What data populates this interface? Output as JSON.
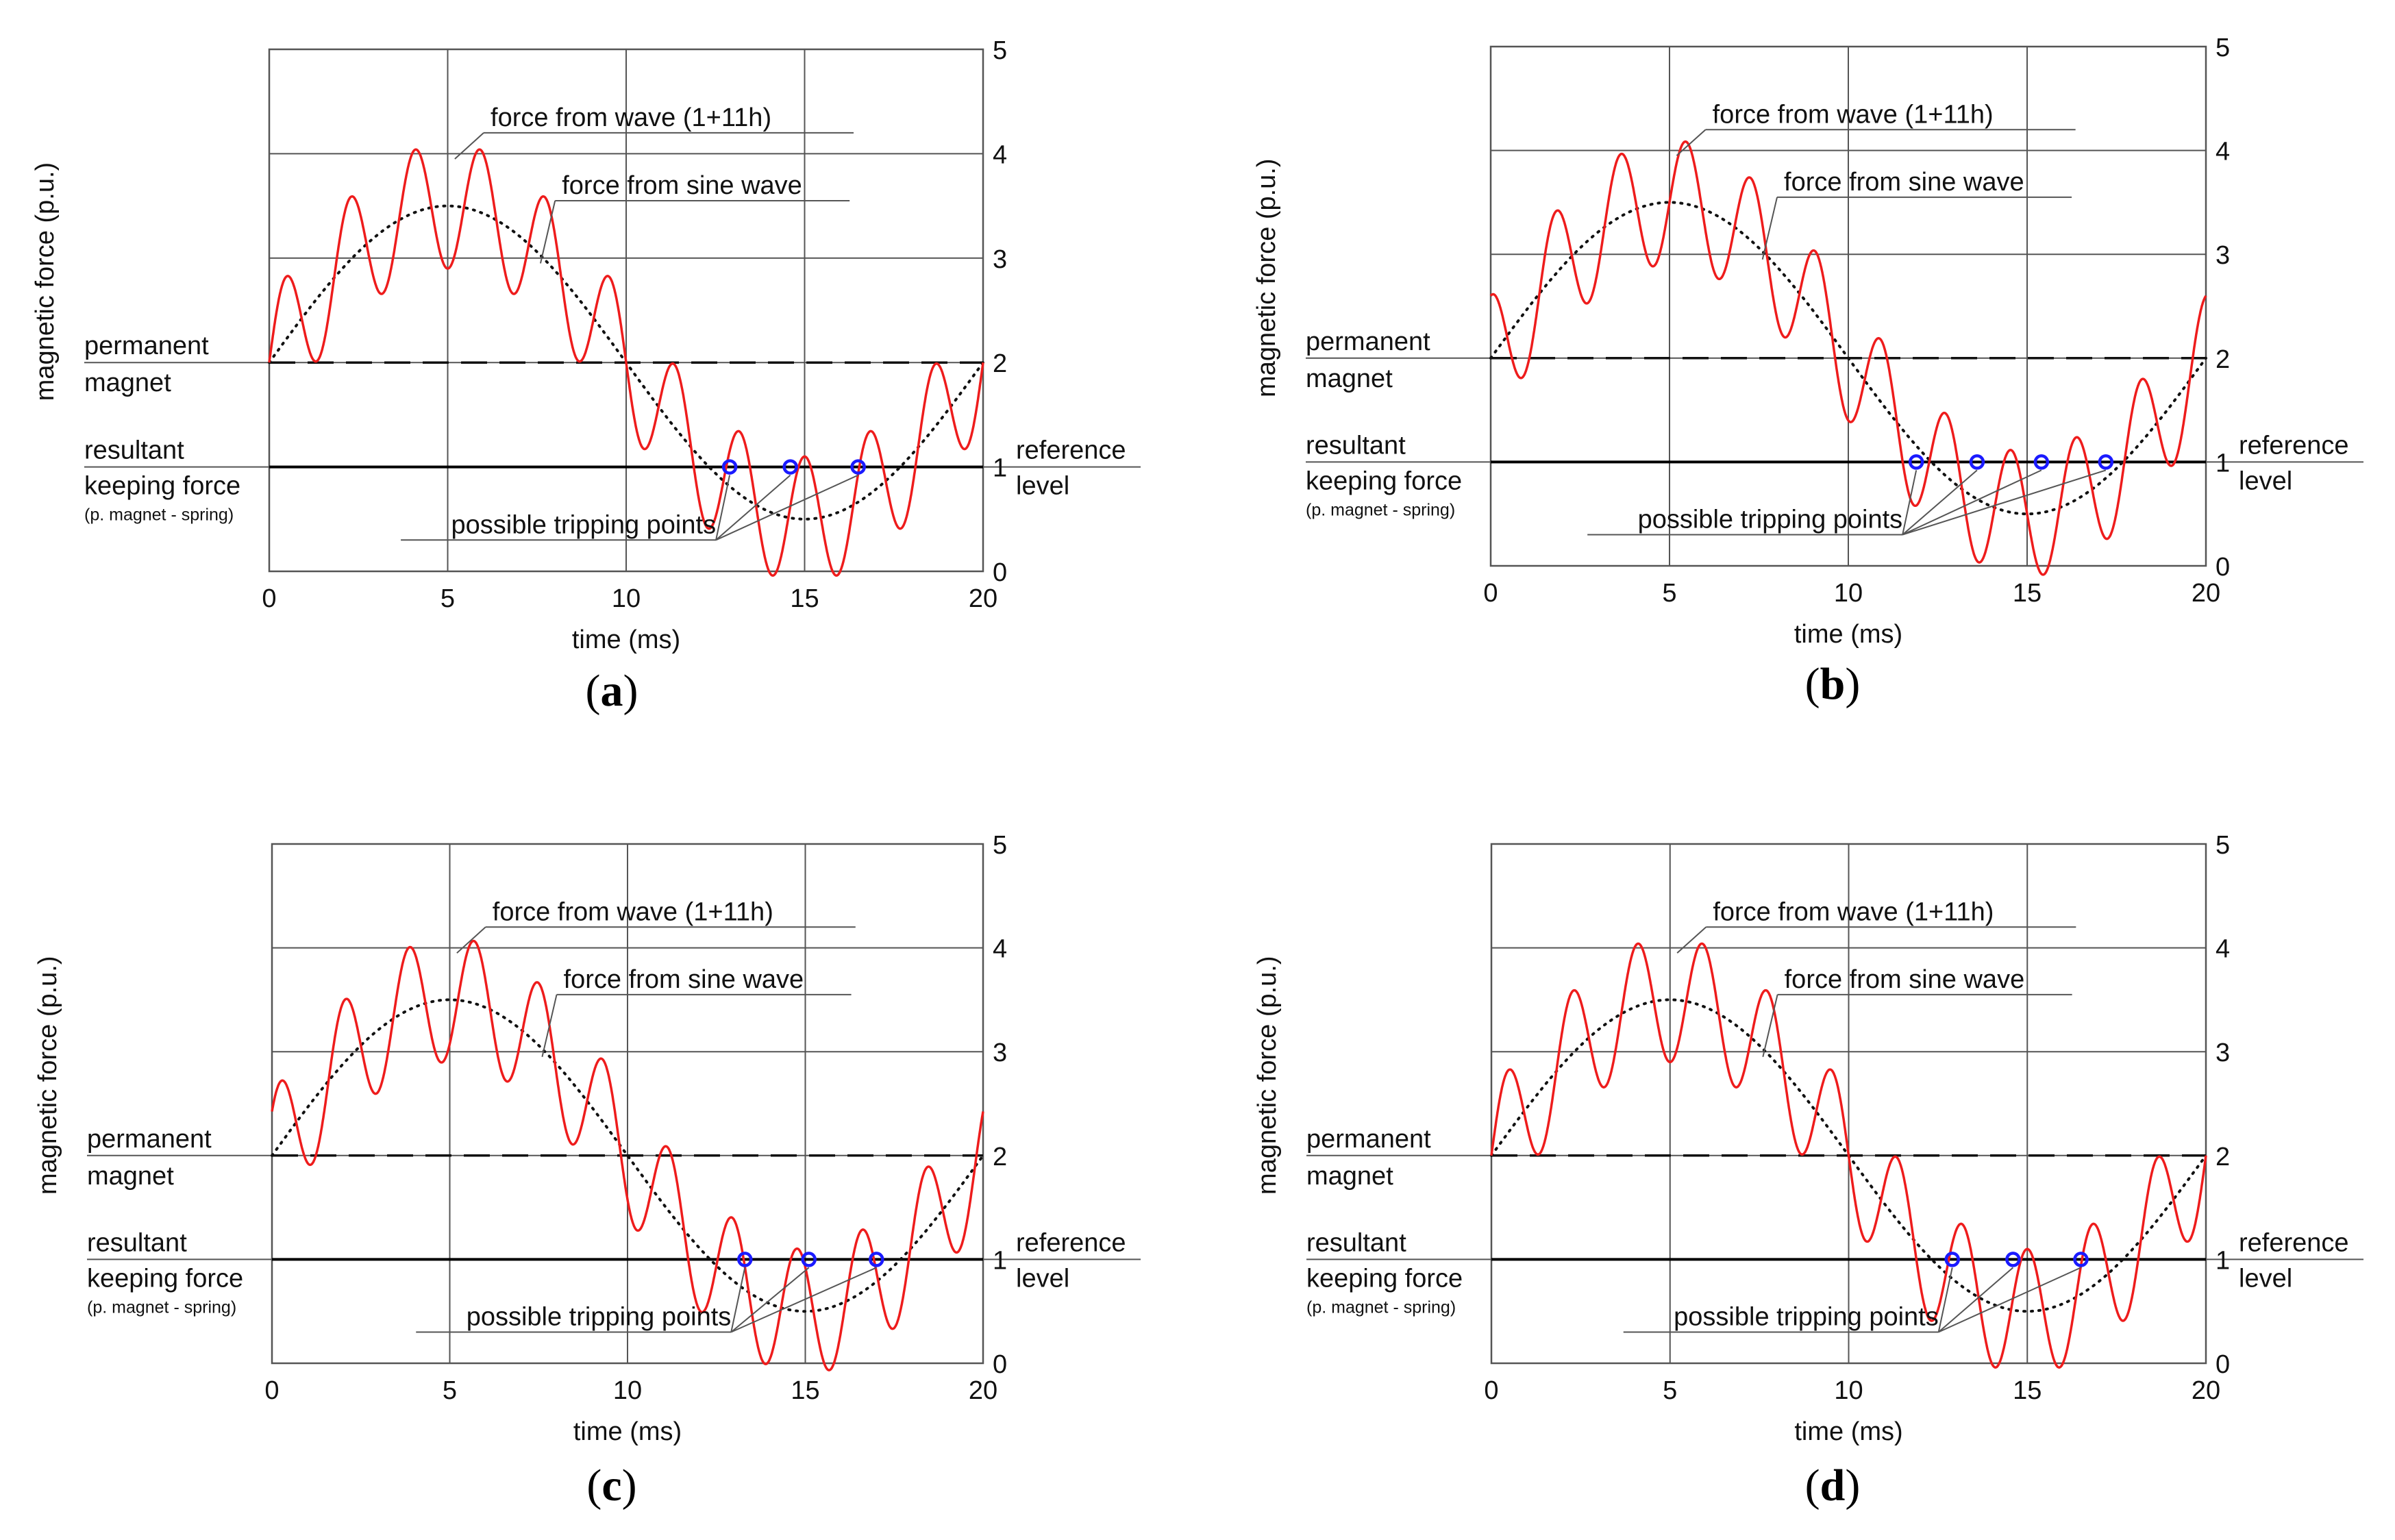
{
  "figure": {
    "common": {
      "ylabel": "magnetic force (p.u.)",
      "xlabel": "time (ms)",
      "xlim": [
        0,
        20
      ],
      "ylim": [
        0,
        5
      ],
      "xticks": [
        "0",
        "5",
        "10",
        "15",
        "20"
      ],
      "yticks": [
        "0",
        "1",
        "2",
        "3",
        "4",
        "5"
      ],
      "label_permanent_magnet": [
        "permanent",
        "magnet"
      ],
      "label_resultant": [
        "resultant",
        "keeping force"
      ],
      "label_resultant_sub": "(p. magnet - spring)",
      "label_reference": [
        "reference",
        "level"
      ],
      "ann_wave": "force from wave (1+11h)",
      "ann_sine": "force from sine wave",
      "ann_tripping": "possible tripping points",
      "colors": {
        "wave": "#ee1c1c",
        "sine": "#111111",
        "trip": "#1a1aff",
        "grid": "#555555"
      }
    }
  },
  "chart_data": [
    {
      "panel": "a",
      "caption": "a",
      "type": "line",
      "series": [
        {
          "name": "force from sine wave",
          "formula": "2 + 1.5*sin(2*pi*t/20)",
          "style": "dotted"
        },
        {
          "name": "force from wave (1+11h)",
          "formula": "2 + 1.5*sin(2*pi*t/20) + 0.6*sin(2*pi*11*t/20 + phase)",
          "phase_deg": 0,
          "style": "solid"
        },
        {
          "name": "permanent magnet",
          "y": 2,
          "style": "dashed"
        },
        {
          "name": "resultant keeping force",
          "y": 1,
          "style": "solid"
        }
      ],
      "tripping_points_ms": [
        12.9,
        14.6,
        16.5
      ]
    },
    {
      "panel": "b",
      "caption": "b",
      "type": "line",
      "series": [
        {
          "name": "force from sine wave",
          "formula": "2 + 1.5*sin(2*pi*t/20)",
          "style": "dotted"
        },
        {
          "name": "force from wave (1+11h)",
          "formula": "2 + 1.5*sin(2*pi*t/20) + 0.6*sin(2*pi*11*t/20 + phase)",
          "phase_deg": 90,
          "style": "solid"
        },
        {
          "name": "permanent magnet",
          "y": 2,
          "style": "dashed"
        },
        {
          "name": "resultant keeping force",
          "y": 1,
          "style": "solid"
        }
      ],
      "tripping_points_ms": [
        11.9,
        13.6,
        15.4,
        17.2
      ]
    },
    {
      "panel": "c",
      "caption": "c",
      "type": "line",
      "series": [
        {
          "name": "force from sine wave",
          "formula": "2 + 1.5*sin(2*pi*t/20)",
          "style": "dotted"
        },
        {
          "name": "force from wave (1+11h)",
          "formula": "2 + 1.5*sin(2*pi*t/20) + 0.6*sin(2*pi*11*t/20 + phase)",
          "phase_deg": 45,
          "style": "solid"
        },
        {
          "name": "permanent magnet",
          "y": 2,
          "style": "dashed"
        },
        {
          "name": "resultant keeping force",
          "y": 1,
          "style": "solid"
        }
      ],
      "tripping_points_ms": [
        13.3,
        15.1,
        17.0
      ]
    },
    {
      "panel": "d",
      "caption": "d",
      "type": "line",
      "series": [
        {
          "name": "force from sine wave",
          "formula": "2 + 1.5*sin(2*pi*t/20)",
          "style": "dotted"
        },
        {
          "name": "force from wave (1+11h)",
          "formula": "2 + 1.5*sin(2*pi*t/20) + 0.6*sin(2*pi*11*t/20 + phase)",
          "phase_deg": 0,
          "style": "solid"
        },
        {
          "name": "permanent magnet",
          "y": 2,
          "style": "dashed"
        },
        {
          "name": "resultant keeping force",
          "y": 1,
          "style": "solid"
        }
      ],
      "tripping_points_ms": [
        12.9,
        14.6,
        16.5
      ]
    }
  ]
}
